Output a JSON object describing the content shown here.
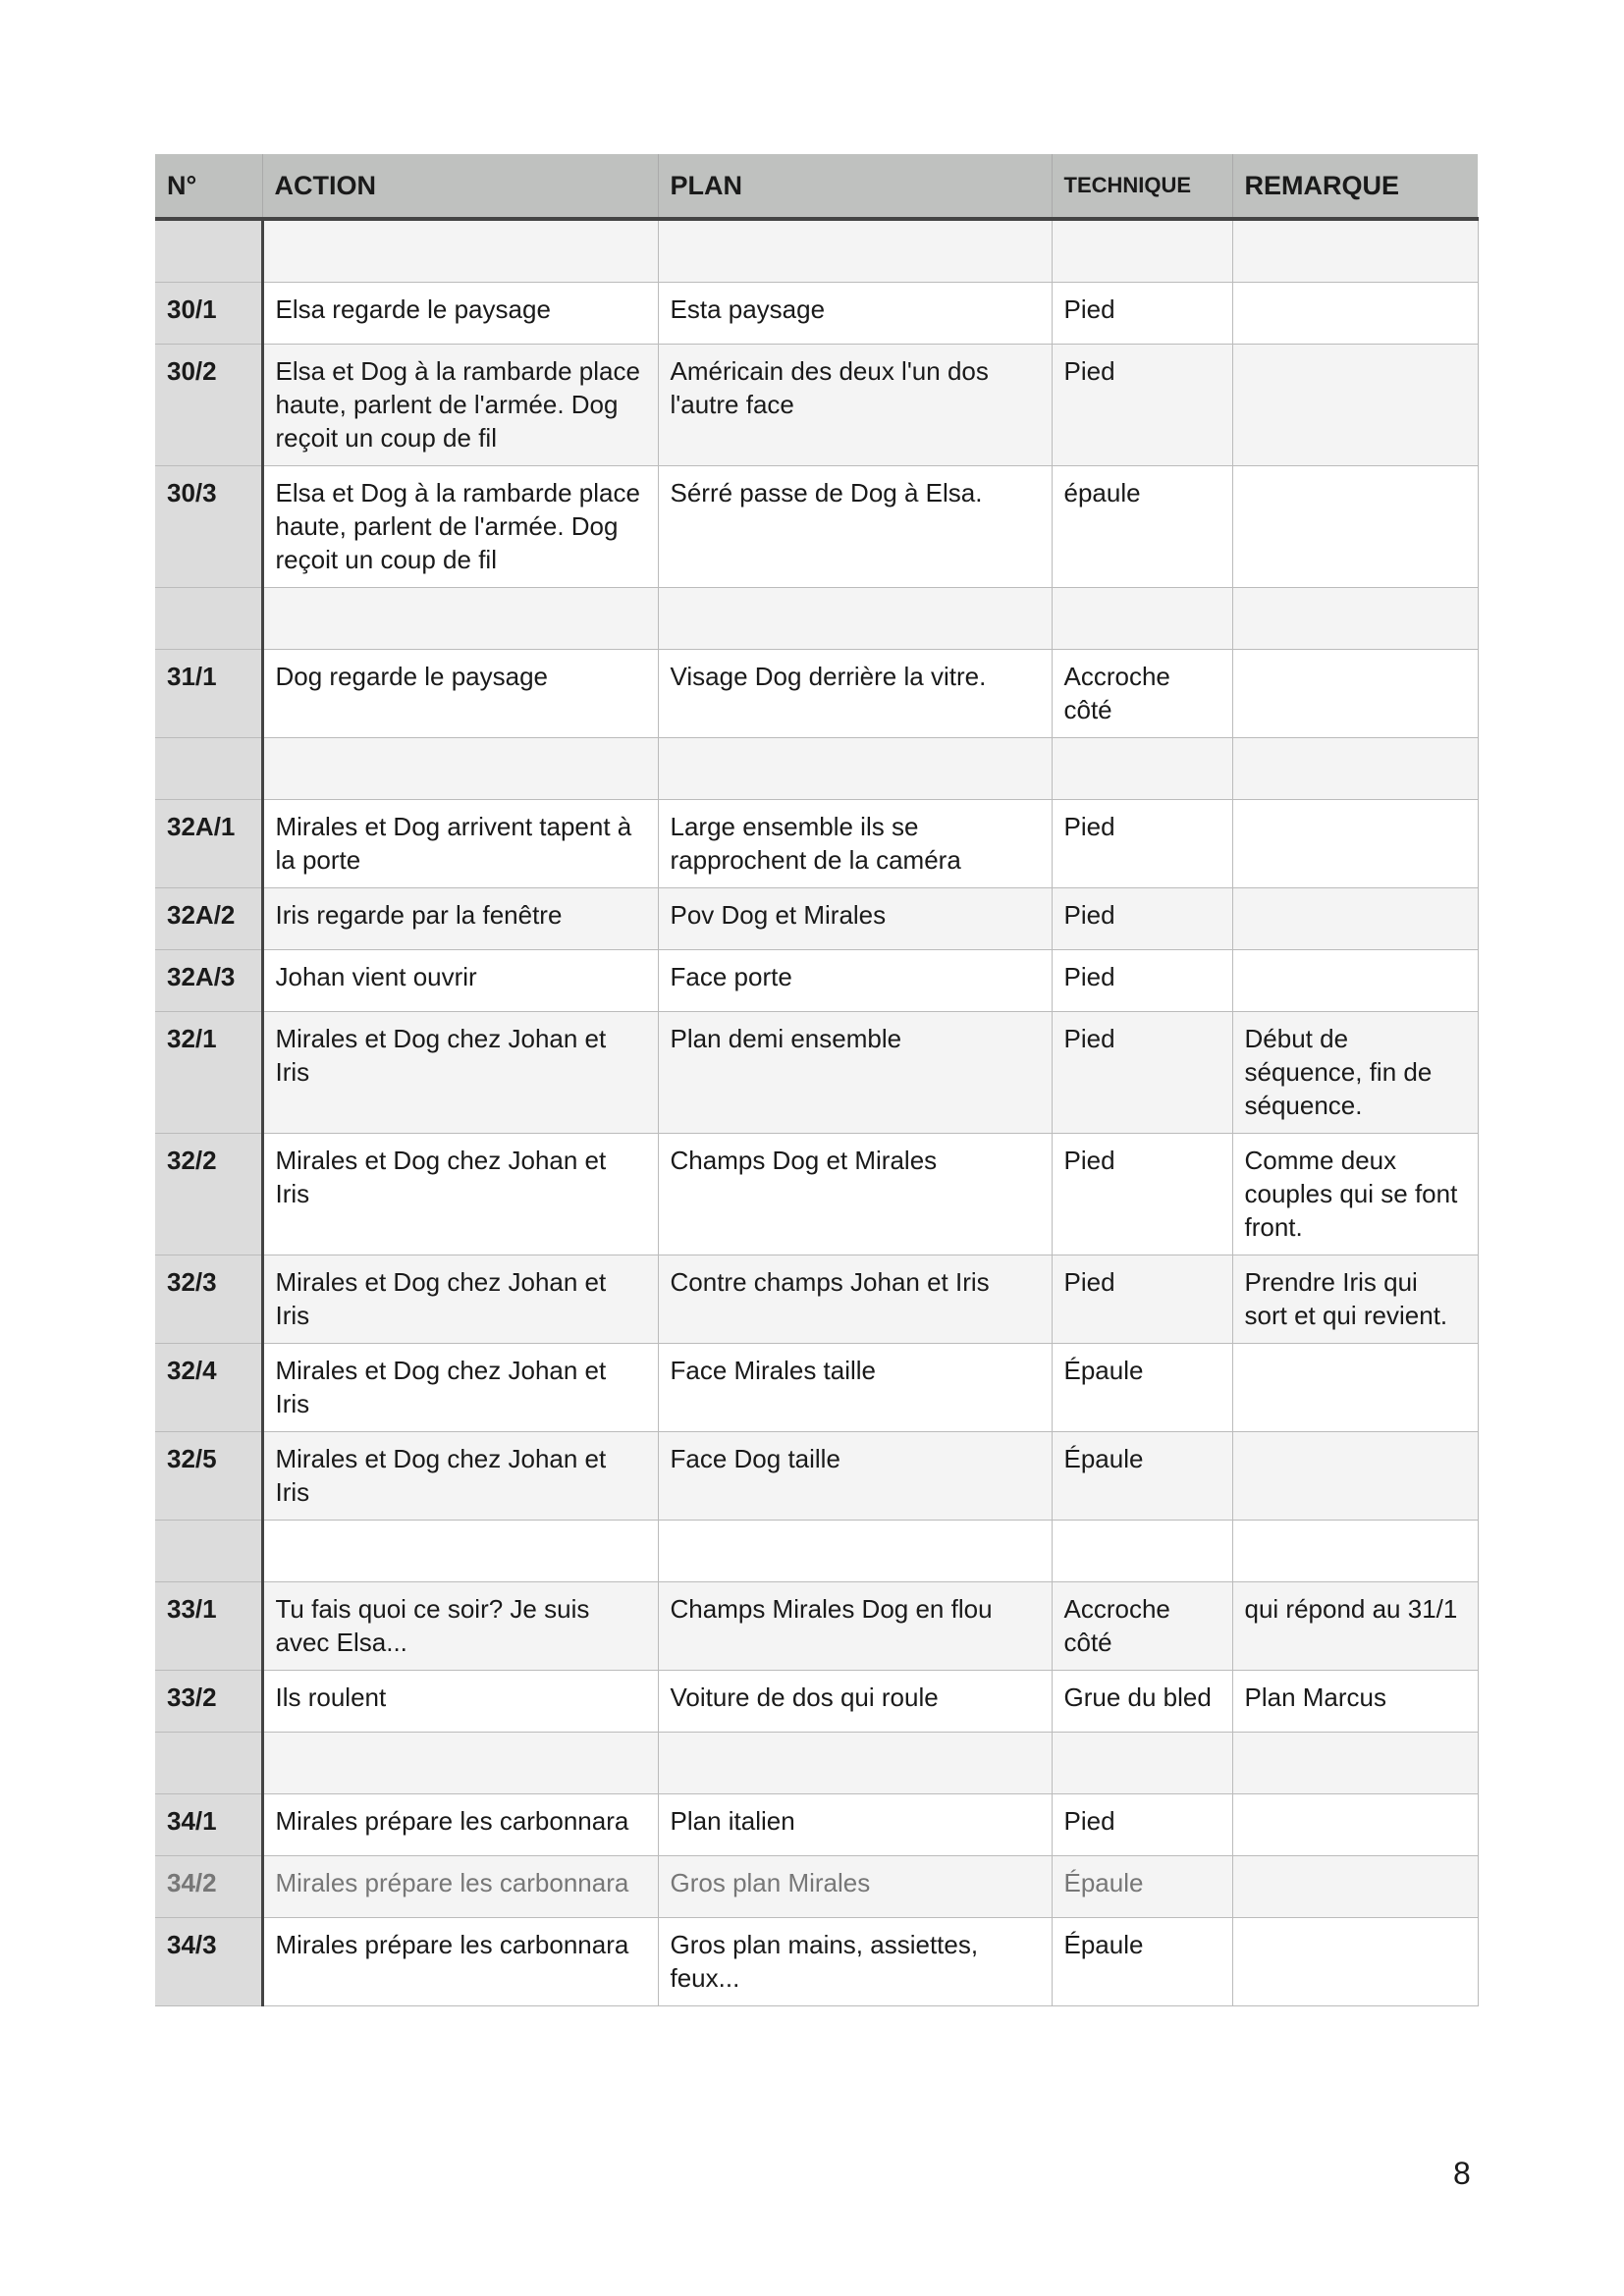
{
  "headers": [
    "N°",
    "ACTION",
    "PLAN",
    "TECHNIQUE",
    "REMARQUE"
  ],
  "rows": [
    {
      "n": "",
      "action": "",
      "plan": "",
      "technique": "",
      "remarque": ""
    },
    {
      "n": "30/1",
      "action": "Elsa regarde le paysage",
      "plan": "Esta paysage",
      "technique": "Pied",
      "remarque": ""
    },
    {
      "n": "30/2",
      "action": "Elsa et Dog à la rambarde place haute, parlent de l'armée. Dog reçoit un coup de fil",
      "plan": "Américain des deux l'un dos l'autre face",
      "technique": "Pied",
      "remarque": ""
    },
    {
      "n": "30/3",
      "action": "Elsa et Dog à la rambarde place haute, parlent de l'armée. Dog reçoit un coup de fil",
      "plan": "Sérré passe de Dog à Elsa.",
      "technique": "épaule",
      "remarque": ""
    },
    {
      "n": "",
      "action": "",
      "plan": "",
      "technique": "",
      "remarque": ""
    },
    {
      "n": "31/1",
      "action": "Dog regarde le paysage",
      "plan": "Visage Dog derrière la vitre.",
      "technique": "Accroche côté",
      "remarque": ""
    },
    {
      "n": "",
      "action": "",
      "plan": "",
      "technique": "",
      "remarque": ""
    },
    {
      "n": "32A/1",
      "action": "Mirales et Dog arrivent tapent à la porte",
      "plan": "Large ensemble ils se rapprochent de la caméra",
      "technique": "Pied",
      "remarque": ""
    },
    {
      "n": "32A/2",
      "action": "Iris regarde par la fenêtre",
      "plan": "Pov Dog et Mirales",
      "technique": "Pied",
      "remarque": ""
    },
    {
      "n": "32A/3",
      "action": "Johan vient ouvrir",
      "plan": "Face porte",
      "technique": "Pied",
      "remarque": ""
    },
    {
      "n": "32/1",
      "action": "Mirales et Dog chez Johan et Iris",
      "plan": "Plan demi ensemble",
      "technique": "Pied",
      "remarque": "Début de séquence, fin de séquence."
    },
    {
      "n": "32/2",
      "action": "Mirales et Dog chez Johan et Iris",
      "plan": "Champs Dog et Mirales",
      "technique": "Pied",
      "remarque": "Comme deux couples qui se font front."
    },
    {
      "n": "32/3",
      "action": "Mirales et Dog chez Johan et Iris",
      "plan": "Contre champs Johan et Iris",
      "technique": "Pied",
      "remarque": "Prendre Iris qui sort et qui revient."
    },
    {
      "n": "32/4",
      "action": "Mirales et Dog chez Johan et Iris",
      "plan": "Face Mirales taille",
      "technique": "Épaule",
      "remarque": ""
    },
    {
      "n": "32/5",
      "action": "Mirales et Dog chez Johan et Iris",
      "plan": "Face Dog taille",
      "technique": "Épaule",
      "remarque": ""
    },
    {
      "n": "",
      "action": "",
      "plan": "",
      "technique": "",
      "remarque": ""
    },
    {
      "n": "33/1",
      "action": "Tu fais quoi ce soir? Je suis avec Elsa...",
      "plan": "Champs Mirales Dog en flou",
      "technique": "Accroche côté",
      "remarque": "qui répond au 31/1"
    },
    {
      "n": "33/2",
      "action": "Ils roulent",
      "plan": "Voiture de dos qui roule",
      "technique": "Grue du bled",
      "remarque": "Plan Marcus"
    },
    {
      "n": "",
      "action": "",
      "plan": "",
      "technique": "",
      "remarque": ""
    },
    {
      "n": "34/1",
      "action": "Mirales prépare les carbonnara",
      "plan": "Plan italien",
      "technique": "Pied",
      "remarque": ""
    },
    {
      "n": "34/2",
      "action": "Mirales prépare les carbonnara",
      "plan": "Gros plan Mirales",
      "technique": "Épaule",
      "remarque": "",
      "muted": true
    },
    {
      "n": "34/3",
      "action": "Mirales prépare les carbonnara",
      "plan": "Gros plan mains, assiettes, feux...",
      "technique": "Épaule",
      "remarque": ""
    }
  ],
  "page_number": "8",
  "colors": {
    "header_bg": "#bfc1bf",
    "number_col_bg": "#dcdcdc",
    "alt_row_bg": "#f4f4f4",
    "muted_text": "#777777"
  }
}
